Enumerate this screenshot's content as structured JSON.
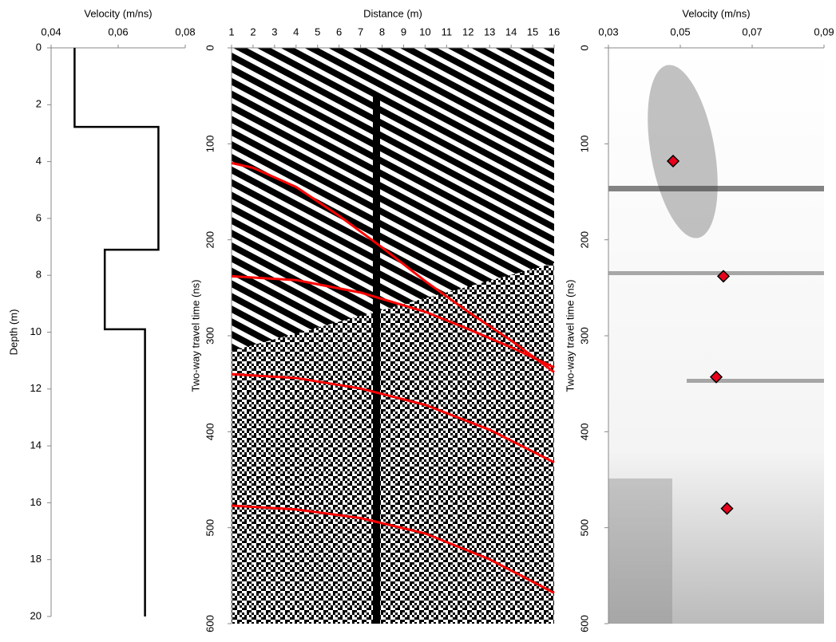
{
  "chart_data": [
    {
      "type": "line",
      "x_label": "Velocity (m/ns)",
      "y_label": "Depth (m)",
      "xlim": [
        0.04,
        0.08
      ],
      "xticks": [
        {
          "value": 0.04,
          "label": "0,04"
        },
        {
          "value": 0.06,
          "label": "0,06"
        },
        {
          "value": 0.08,
          "label": "0,08"
        }
      ],
      "ylim": [
        0,
        20
      ],
      "yticks": [
        0,
        2,
        4,
        6,
        8,
        10,
        12,
        14,
        16,
        18,
        20
      ],
      "y_inverted": true,
      "series": [
        {
          "color": "#000000",
          "x": [
            0.047,
            0.047,
            0.072,
            0.072,
            0.056,
            0.056,
            0.068,
            0.068
          ],
          "values": [
            0,
            2.78,
            2.78,
            7.1,
            7.1,
            9.9,
            9.9,
            20
          ]
        }
      ]
    },
    {
      "type": "line",
      "x_label": "Distance (m)",
      "y_label": "Two-way travel time (ns)",
      "xlim": [
        1,
        16
      ],
      "xticks": [
        1,
        2,
        3,
        4,
        5,
        6,
        7,
        8,
        9,
        10,
        11,
        12,
        13,
        14,
        15,
        16
      ],
      "ylim": [
        0,
        600
      ],
      "yticks": [
        0,
        100,
        200,
        300,
        400,
        500,
        600
      ],
      "y_inverted": true,
      "series": [
        {
          "color": "#ff0000",
          "x": [
            1,
            2,
            4,
            6,
            8,
            10,
            12,
            14,
            16
          ],
          "values": [
            120,
            125,
            145,
            175,
            208,
            243,
            275,
            305,
            338
          ]
        },
        {
          "color": "#ff0000",
          "x": [
            1,
            4,
            7,
            10,
            12,
            14,
            16
          ],
          "values": [
            238,
            242,
            255,
            275,
            293,
            312,
            333
          ]
        },
        {
          "color": "#ff0000",
          "x": [
            1,
            4,
            7,
            10,
            13,
            16
          ],
          "values": [
            340,
            344,
            355,
            372,
            398,
            432
          ]
        },
        {
          "color": "#ff0000",
          "x": [
            1,
            4,
            7,
            10,
            13,
            16
          ],
          "values": [
            477,
            481,
            490,
            506,
            533,
            568
          ]
        }
      ]
    },
    {
      "type": "scatter",
      "x_label": "Velocity (m/ns)",
      "y_label": "Two-way travel time (ns)",
      "xlim": [
        0.03,
        0.09
      ],
      "xticks": [
        {
          "value": 0.03,
          "label": "0,03"
        },
        {
          "value": 0.05,
          "label": "0,05"
        },
        {
          "value": 0.07,
          "label": "0,07"
        },
        {
          "value": 0.09,
          "label": "0,09"
        }
      ],
      "ylim": [
        0,
        600
      ],
      "yticks": [
        0,
        100,
        200,
        300,
        400,
        500,
        600
      ],
      "y_inverted": true,
      "series": [
        {
          "color": "#e8001c",
          "x": [
            0.048,
            0.062,
            0.06,
            0.063
          ],
          "values": [
            118,
            238,
            343,
            480
          ]
        }
      ]
    }
  ]
}
